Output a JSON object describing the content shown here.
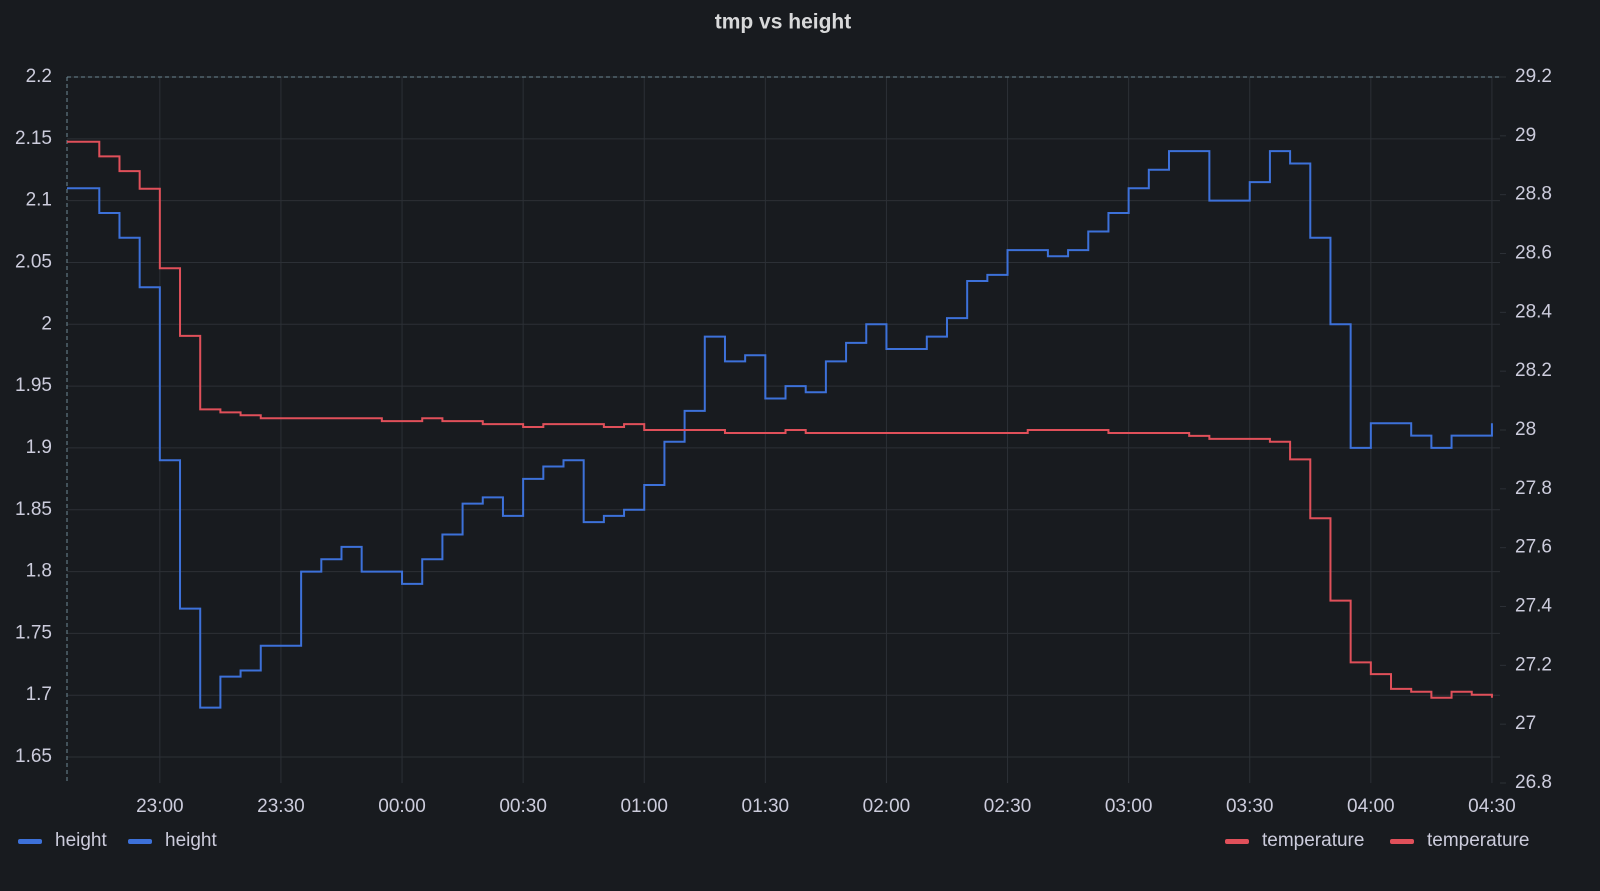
{
  "chart_data": {
    "type": "line",
    "title": "tmp vs height",
    "x": [
      "22:37",
      "22:45",
      "22:50",
      "22:55",
      "23:00",
      "23:05",
      "23:10",
      "23:15",
      "23:20",
      "23:25",
      "23:30",
      "23:35",
      "23:40",
      "23:45",
      "23:50",
      "23:55",
      "00:00",
      "00:05",
      "00:10",
      "00:15",
      "00:20",
      "00:25",
      "00:30",
      "00:35",
      "00:40",
      "00:45",
      "00:50",
      "00:55",
      "01:00",
      "01:05",
      "01:10",
      "01:15",
      "01:20",
      "01:25",
      "01:30",
      "01:35",
      "01:40",
      "01:45",
      "01:50",
      "01:55",
      "02:00",
      "02:05",
      "02:10",
      "02:15",
      "02:20",
      "02:25",
      "02:30",
      "02:35",
      "02:40",
      "02:45",
      "02:50",
      "02:55",
      "03:00",
      "03:05",
      "03:10",
      "03:15",
      "03:20",
      "03:25",
      "03:30",
      "03:35",
      "03:40",
      "03:45",
      "03:50",
      "03:55",
      "04:00",
      "04:05",
      "04:10",
      "04:15",
      "04:20",
      "04:25",
      "04:30"
    ],
    "xlim": [
      "22:37",
      "04:32"
    ],
    "xticks": [
      "23:00",
      "23:30",
      "00:00",
      "00:30",
      "01:00",
      "01:30",
      "02:00",
      "02:30",
      "03:00",
      "03:30",
      "04:00",
      "04:30"
    ],
    "series": [
      {
        "name": "height",
        "color": "#3d71d9",
        "axis": "y",
        "values": [
          2.11,
          2.09,
          2.07,
          2.03,
          1.89,
          1.77,
          1.69,
          1.715,
          1.72,
          1.74,
          1.74,
          1.8,
          1.81,
          1.82,
          1.8,
          1.8,
          1.79,
          1.81,
          1.83,
          1.855,
          1.86,
          1.845,
          1.875,
          1.885,
          1.89,
          1.84,
          1.845,
          1.85,
          1.87,
          1.905,
          1.93,
          1.99,
          1.97,
          1.975,
          1.94,
          1.95,
          1.945,
          1.97,
          1.985,
          2.0,
          1.98,
          1.98,
          1.99,
          2.005,
          2.035,
          2.04,
          2.06,
          2.06,
          2.055,
          2.06,
          2.075,
          2.09,
          2.11,
          2.125,
          2.14,
          2.14,
          2.1,
          2.1,
          2.115,
          2.14,
          2.13,
          2.07,
          2.0,
          1.9,
          1.92,
          1.92,
          1.91,
          1.9,
          1.91,
          1.91,
          1.92
        ]
      },
      {
        "name": "temperature",
        "color": "#e0505a",
        "axis": "y2",
        "values": [
          28.98,
          28.93,
          28.88,
          28.82,
          28.55,
          28.32,
          28.07,
          28.06,
          28.05,
          28.04,
          28.04,
          28.04,
          28.04,
          28.04,
          28.04,
          28.03,
          28.03,
          28.04,
          28.03,
          28.03,
          28.02,
          28.02,
          28.01,
          28.02,
          28.02,
          28.02,
          28.01,
          28.02,
          28.0,
          28.0,
          28.0,
          28.0,
          27.99,
          27.99,
          27.99,
          28.0,
          27.99,
          27.99,
          27.99,
          27.99,
          27.99,
          27.99,
          27.99,
          27.99,
          27.99,
          27.99,
          27.99,
          28.0,
          28.0,
          28.0,
          28.0,
          27.99,
          27.99,
          27.99,
          27.99,
          27.98,
          27.97,
          27.97,
          27.97,
          27.96,
          27.9,
          27.7,
          27.42,
          27.21,
          27.17,
          27.12,
          27.11,
          27.09,
          27.11,
          27.1,
          27.09
        ]
      }
    ],
    "legend": [
      {
        "name": "height",
        "color": "#3d71d9"
      },
      {
        "name": "height",
        "color": "#3d71d9"
      },
      {
        "name": "temperature",
        "color": "#e0505a"
      },
      {
        "name": "temperature",
        "color": "#e0505a"
      }
    ],
    "ylim": [
      1.629,
      2.2
    ],
    "yticks": [
      1.65,
      1.7,
      1.75,
      1.8,
      1.85,
      1.9,
      1.95,
      2,
      2.05,
      2.1,
      2.15,
      2.2
    ],
    "y2lim": [
      26.8,
      29.2
    ],
    "y2ticks": [
      26.8,
      27,
      27.2,
      27.4,
      27.6,
      27.8,
      28,
      28.2,
      28.4,
      28.6,
      28.8,
      29,
      29.2
    ],
    "grid": true
  }
}
